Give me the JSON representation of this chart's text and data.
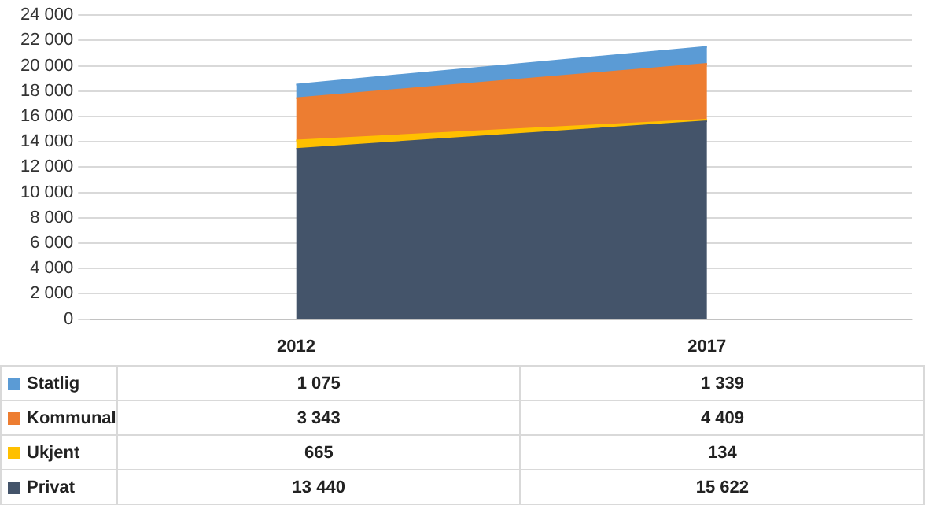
{
  "chart_data": {
    "type": "area",
    "stacked": true,
    "categories": [
      "2012",
      "2017"
    ],
    "series": [
      {
        "name": "Privat",
        "color": "#44546a",
        "values": [
          13440,
          15622
        ],
        "value_labels": [
          "13 440",
          "15 622"
        ]
      },
      {
        "name": "Ukjent",
        "color": "#ffc000",
        "values": [
          665,
          134
        ],
        "value_labels": [
          "665",
          "134"
        ]
      },
      {
        "name": "Kommunal",
        "color": "#ed7d31",
        "values": [
          3343,
          4409
        ],
        "value_labels": [
          "3 343",
          "4 409"
        ]
      },
      {
        "name": "Statlig",
        "color": "#5b9bd5",
        "values": [
          1075,
          1339
        ],
        "value_labels": [
          "1 075",
          "1 339"
        ]
      }
    ],
    "ylim": [
      0,
      24000
    ],
    "yticks": [
      0,
      {
        "value": 2000,
        "label": "2 000"
      },
      {
        "value": 4000,
        "label": "4 000"
      },
      {
        "value": 6000,
        "label": "6 000"
      },
      {
        "value": 8000,
        "label": "8 000"
      },
      {
        "value": 10000,
        "label": "10 000"
      },
      {
        "value": 12000,
        "label": "12 000"
      },
      {
        "value": 14000,
        "label": "14 000"
      },
      {
        "value": 16000,
        "label": "16 000"
      },
      {
        "value": 18000,
        "label": "18 000"
      },
      {
        "value": 20000,
        "label": "20 000"
      },
      {
        "value": 22000,
        "label": "22 000"
      },
      {
        "value": 24000,
        "label": "24 000"
      }
    ],
    "grid": "y",
    "legend": "bottom"
  }
}
